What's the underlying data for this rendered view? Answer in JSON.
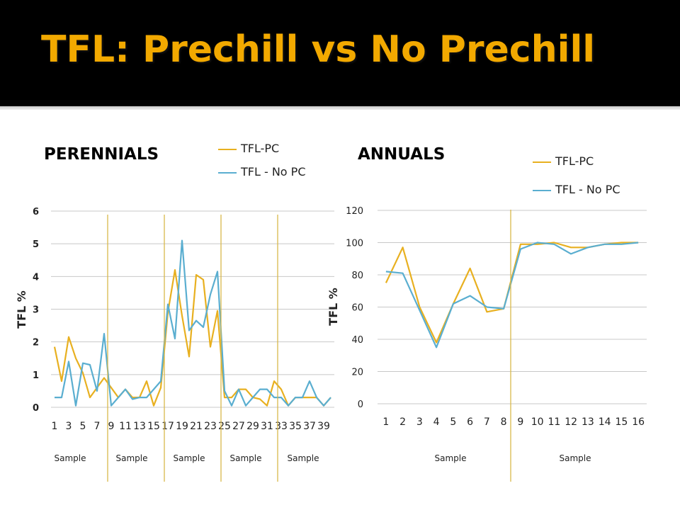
{
  "slide": {
    "title": "TFL: Prechill vs No Prechill"
  },
  "colors": {
    "tfl_pc": "#e8b020",
    "tfl_no_pc": "#5aaed0",
    "divider": "#d9b84a",
    "grid": "#c8c8c8"
  },
  "chart_data": [
    {
      "type": "line",
      "title": "PERENNIALS",
      "xlabel": "",
      "ylabel": "TFL %",
      "ylim": [
        0,
        6
      ],
      "yticks": [
        "0",
        "1",
        "2",
        "3",
        "4",
        "5",
        "6"
      ],
      "x": [
        1,
        2,
        3,
        4,
        5,
        6,
        7,
        8,
        9,
        10,
        11,
        12,
        13,
        14,
        15,
        16,
        17,
        18,
        19,
        20,
        21,
        22,
        23,
        24,
        25,
        26,
        27,
        28,
        29,
        30,
        31,
        32,
        33,
        34,
        35,
        36,
        37,
        38,
        39,
        40
      ],
      "xticks": [
        "1",
        "3",
        "5",
        "7",
        "9",
        "11",
        "13",
        "15",
        "17",
        "19",
        "21",
        "23",
        "25",
        "27",
        "29",
        "31",
        "33",
        "35",
        "37",
        "39"
      ],
      "group_labels": [
        "Sample",
        "Sample",
        "Sample",
        "Sample",
        "Sample"
      ],
      "legend": [
        "TFL-PC",
        "TFL - No PC"
      ],
      "series": [
        {
          "name": "TFL-PC",
          "values": [
            1.85,
            0.8,
            2.15,
            1.5,
            1.05,
            0.3,
            0.6,
            0.9,
            0.6,
            0.3,
            0.55,
            0.3,
            0.3,
            0.8,
            0.05,
            0.6,
            2.9,
            4.2,
            2.8,
            1.55,
            4.05,
            3.9,
            1.85,
            2.95,
            0.3,
            0.3,
            0.55,
            0.55,
            0.3,
            0.25,
            0.05,
            0.8,
            0.55,
            0.05,
            0.3,
            0.3,
            0.3,
            0.3,
            0.05,
            0.3
          ]
        },
        {
          "name": "TFL - No PC",
          "values": [
            0.3,
            0.3,
            1.4,
            0.05,
            1.35,
            1.3,
            0.5,
            2.25,
            0.05,
            0.3,
            0.55,
            0.25,
            0.3,
            0.3,
            0.55,
            0.8,
            3.15,
            2.1,
            5.1,
            2.35,
            2.65,
            2.45,
            3.45,
            4.15,
            0.5,
            0.05,
            0.55,
            0.05,
            0.3,
            0.55,
            0.55,
            0.3,
            0.3,
            0.05,
            0.3,
            0.3,
            0.8,
            0.3,
            0.05,
            0.3
          ]
        }
      ]
    },
    {
      "type": "line",
      "title": "ANNUALS",
      "xlabel": "",
      "ylabel": "TFL %",
      "ylim": [
        0,
        120
      ],
      "yticks": [
        "0",
        "20",
        "40",
        "60",
        "80",
        "100",
        "120"
      ],
      "x": [
        1,
        2,
        3,
        4,
        5,
        6,
        7,
        8,
        9,
        10,
        11,
        12,
        13,
        14,
        15,
        16
      ],
      "xticks": [
        "1",
        "2",
        "3",
        "4",
        "5",
        "6",
        "7",
        "8",
        "9",
        "10",
        "11",
        "12",
        "13",
        "14",
        "15",
        "16"
      ],
      "group_labels": [
        "Sample",
        "Sample"
      ],
      "legend": [
        "TFL-PC",
        "TFL - No PC"
      ],
      "series": [
        {
          "name": "TFL-PC",
          "values": [
            75,
            97,
            60,
            38,
            62,
            84,
            57,
            59,
            99,
            99,
            100,
            97,
            97,
            99,
            100,
            100
          ]
        },
        {
          "name": "TFL - No PC",
          "values": [
            82,
            81,
            58,
            35,
            62,
            67,
            60,
            59,
            96,
            100,
            99,
            93,
            97,
            99,
            99,
            100
          ]
        }
      ]
    }
  ]
}
